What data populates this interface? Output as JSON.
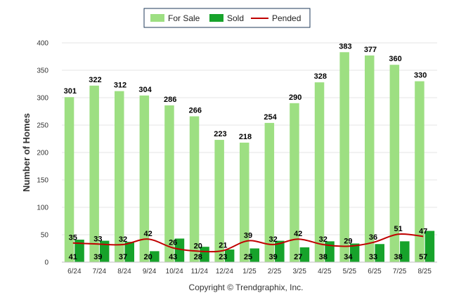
{
  "chart_data": {
    "type": "bar",
    "title": "",
    "xlabel": "",
    "ylabel": "Number of Homes",
    "ylim": [
      0,
      400
    ],
    "yticks": [
      0,
      50,
      100,
      150,
      200,
      250,
      300,
      350,
      400
    ],
    "categories": [
      "6/24",
      "7/24",
      "8/24",
      "9/24",
      "10/24",
      "11/24",
      "12/24",
      "1/25",
      "2/25",
      "3/25",
      "4/25",
      "5/25",
      "6/25",
      "7/25",
      "8/25"
    ],
    "series": [
      {
        "name": "For Sale",
        "kind": "bar",
        "color": "#9ddf82",
        "values": [
          301,
          322,
          312,
          304,
          286,
          266,
          223,
          218,
          254,
          290,
          328,
          383,
          377,
          360,
          330
        ]
      },
      {
        "name": "Sold",
        "kind": "bar",
        "color": "#17a32b",
        "values": [
          41,
          39,
          37,
          20,
          43,
          28,
          23,
          25,
          39,
          27,
          38,
          34,
          33,
          38,
          57
        ]
      },
      {
        "name": "Pended",
        "kind": "line",
        "color": "#c00000",
        "values": [
          35,
          33,
          32,
          42,
          26,
          20,
          21,
          39,
          32,
          42,
          32,
          29,
          36,
          51,
          47
        ]
      }
    ],
    "grid": true,
    "legend_position": "top-center"
  },
  "footer": {
    "copyright": "Copyright © Trendgraphix, Inc."
  }
}
